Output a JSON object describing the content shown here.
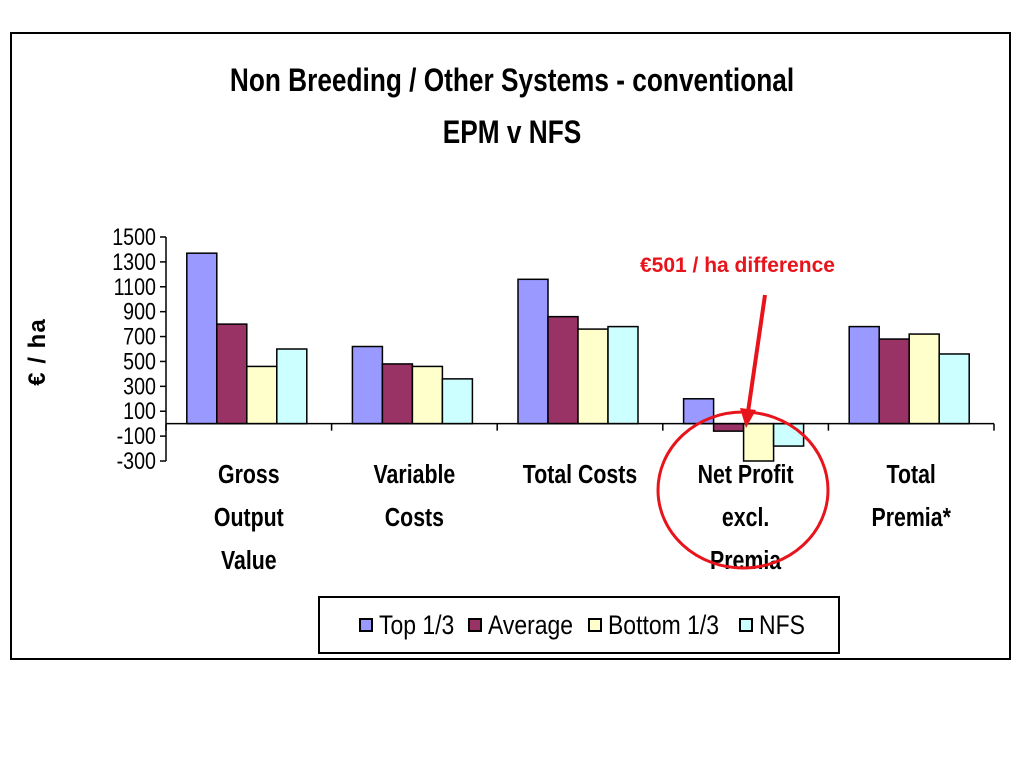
{
  "chart_data": {
    "type": "bar",
    "title": "Non Breeding / Other Systems - conventional",
    "subtitle": "EPM v NFS",
    "ylabel": "€ / ha",
    "xlabel": "",
    "ylim": [
      -300,
      1500
    ],
    "yticks": [
      "1500",
      "1300",
      "1100",
      "900",
      "700",
      "500",
      "300",
      "100",
      "-100",
      "-300"
    ],
    "categories": [
      "Gross Output Value",
      "Variable Costs",
      "Total Costs",
      "Net Profit excl. Premia",
      "Total Premia*"
    ],
    "category_lines": [
      [
        "Gross",
        "Output",
        "Value"
      ],
      [
        "Variable",
        "Costs"
      ],
      [
        "Total Costs"
      ],
      [
        "Net Profit",
        "excl.",
        "Premia"
      ],
      [
        "Total",
        "Premia*"
      ]
    ],
    "series": [
      {
        "name": "Top 1/3",
        "color": "#9999ff",
        "values": [
          1370,
          620,
          1160,
          200,
          780
        ]
      },
      {
        "name": "Average",
        "color": "#993366",
        "values": [
          800,
          480,
          860,
          -60,
          680
        ]
      },
      {
        "name": "Bottom 1/3",
        "color": "#ffffcc",
        "values": [
          460,
          460,
          760,
          -300,
          720
        ]
      },
      {
        "name": "NFS",
        "color": "#ccffff",
        "values": [
          600,
          360,
          780,
          -180,
          560
        ]
      }
    ],
    "annotation": "€501 / ha difference",
    "annotation_color": "#e8141b",
    "legend_position": "bottom",
    "grid": false
  }
}
